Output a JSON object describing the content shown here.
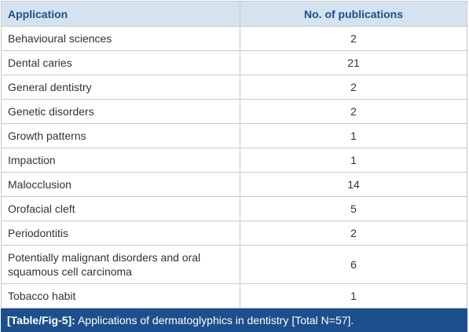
{
  "table": {
    "header": [
      "Application",
      "No. of publications"
    ],
    "rows": [
      [
        "Behavioural sciences",
        2
      ],
      [
        "Dental caries",
        21
      ],
      [
        "General dentistry",
        2
      ],
      [
        "Genetic disorders",
        2
      ],
      [
        "Growth patterns",
        1
      ],
      [
        "Impaction",
        1
      ],
      [
        "Malocclusion",
        14
      ],
      [
        "Orofacial cleft",
        5
      ],
      [
        "Periodontitis",
        2
      ],
      [
        "Potentially malignant disorders and oral squamous cell carcinoma",
        6
      ],
      [
        "Tobacco habit",
        1
      ]
    ]
  },
  "caption": {
    "label": "[Table/Fig-5]:",
    "text": "Applications of dermatoglyphics in dentistry [Total N=57]."
  }
}
